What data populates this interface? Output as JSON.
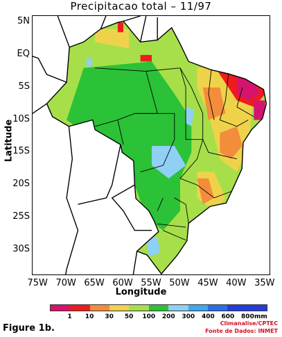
{
  "title": "Precipitacao total   – 11/97",
  "axes": {
    "ylabel": "Latitude",
    "xlabel": "Longitude",
    "y_ticks": [
      "5N",
      "EQ",
      "5S",
      "10S",
      "15S",
      "20S",
      "25S",
      "30S"
    ],
    "x_ticks": [
      "75W",
      "70W",
      "65W",
      "60W",
      "55W",
      "50W",
      "45W",
      "40W",
      "35W"
    ]
  },
  "legend": {
    "labels": [
      "1",
      "10",
      "30",
      "50",
      "100",
      "200",
      "300",
      "400",
      "600",
      "800"
    ],
    "unit": "mm",
    "colors": [
      "#d6136e",
      "#ee1c1c",
      "#f38d3c",
      "#eed34a",
      "#a7df4b",
      "#2bc237",
      "#8fd0f4",
      "#3fa8ef",
      "#2a6ee8",
      "#233ed8"
    ]
  },
  "figure_caption": "Figure 1b.",
  "credits": {
    "line1": "Climanalise/CPTEC",
    "line2": "Fonte de Dados: INMET"
  },
  "chart_data": {
    "type": "heatmap",
    "title": "Precipitacao total   – 11/97",
    "xlabel": "Longitude",
    "ylabel": "Latitude",
    "xlim": [
      -76,
      -34
    ],
    "ylim": [
      -34,
      6
    ],
    "x_tick_values": [
      -75,
      -70,
      -65,
      -60,
      -55,
      -50,
      -45,
      -40,
      -35
    ],
    "y_tick_values": [
      5,
      0,
      -5,
      -10,
      -15,
      -20,
      -25,
      -30
    ],
    "value_bins_mm": [
      1,
      10,
      30,
      50,
      100,
      200,
      300,
      400,
      600,
      800
    ],
    "regions": [
      {
        "level": 200,
        "polygon": [
          [
            -67,
            -2
          ],
          [
            -55,
            -1
          ],
          [
            -51,
            -6
          ],
          [
            -48,
            -10
          ],
          [
            -48,
            -15
          ],
          [
            -50,
            -19
          ],
          [
            -50,
            -24
          ],
          [
            -53,
            -27
          ],
          [
            -56,
            -25
          ],
          [
            -58,
            -20
          ],
          [
            -62,
            -15
          ],
          [
            -70,
            -10
          ]
        ]
      },
      {
        "level": 300,
        "polygon": [
          [
            -66.5,
            -0.5
          ],
          [
            -65.5,
            -0.5
          ],
          [
            -65.5,
            -1.8
          ],
          [
            -66.5,
            -1.8
          ]
        ]
      },
      {
        "level": 300,
        "polygon": [
          [
            -49,
            -8
          ],
          [
            -47.5,
            -8.5
          ],
          [
            -48,
            -11
          ],
          [
            -49,
            -10.5
          ]
        ]
      },
      {
        "level": 300,
        "polygon": [
          [
            -55,
            -14
          ],
          [
            -51,
            -14
          ],
          [
            -49,
            -17
          ],
          [
            -52,
            -19
          ],
          [
            -55,
            -17
          ]
        ]
      },
      {
        "level": 300,
        "polygon": [
          [
            -56,
            -28.5
          ],
          [
            -54,
            -28
          ],
          [
            -53.5,
            -30.5
          ],
          [
            -55.5,
            -31
          ]
        ]
      },
      {
        "level": 100,
        "polygon": [
          [
            -44,
            -13
          ],
          [
            -42,
            -13
          ],
          [
            -41,
            -18
          ],
          [
            -43,
            -20
          ],
          [
            -45,
            -17
          ]
        ]
      },
      {
        "level": 50,
        "polygon": [
          [
            -65,
            4
          ],
          [
            -59,
            4
          ],
          [
            -59,
            1
          ],
          [
            -62,
            1.5
          ],
          [
            -65,
            2
          ]
        ]
      },
      {
        "level": 50,
        "polygon": [
          [
            -47,
            -2
          ],
          [
            -40,
            -2
          ],
          [
            -37,
            -6
          ],
          [
            -38,
            -14
          ],
          [
            -40,
            -18
          ],
          [
            -43,
            -16
          ],
          [
            -45,
            -9
          ],
          [
            -47,
            -5
          ]
        ]
      },
      {
        "level": 50,
        "polygon": [
          [
            -47,
            -18
          ],
          [
            -44,
            -18
          ],
          [
            -42,
            -22
          ],
          [
            -44,
            -24
          ],
          [
            -47,
            -22
          ]
        ]
      },
      {
        "level": 30,
        "polygon": [
          [
            -46,
            -5
          ],
          [
            -43,
            -5
          ],
          [
            -42,
            -9
          ],
          [
            -45,
            -10
          ]
        ]
      },
      {
        "level": 30,
        "polygon": [
          [
            -43,
            -12
          ],
          [
            -40,
            -11
          ],
          [
            -39,
            -14
          ],
          [
            -41,
            -16
          ],
          [
            -43,
            -15
          ]
        ]
      },
      {
        "level": 30,
        "polygon": [
          [
            -47,
            -19
          ],
          [
            -45,
            -19
          ],
          [
            -44,
            -22
          ],
          [
            -46,
            -23
          ]
        ]
      },
      {
        "level": 10,
        "polygon": [
          [
            -45,
            0
          ],
          [
            -40,
            -1
          ],
          [
            -36,
            -4
          ],
          [
            -35,
            -6
          ],
          [
            -37,
            -8
          ],
          [
            -40,
            -7
          ],
          [
            -43,
            -3
          ]
        ]
      },
      {
        "level": 10,
        "polygon": [
          [
            -61,
            5
          ],
          [
            -60,
            5
          ],
          [
            -60,
            3.5
          ],
          [
            -61,
            3.5
          ]
        ]
      },
      {
        "level": 10,
        "polygon": [
          [
            -57,
            0
          ],
          [
            -55,
            0
          ],
          [
            -55,
            -1
          ],
          [
            -57,
            -1
          ]
        ]
      },
      {
        "level": 1,
        "polygon": [
          [
            -40,
            -3
          ],
          [
            -37,
            -4
          ],
          [
            -36,
            -6
          ],
          [
            -38,
            -7
          ],
          [
            -40,
            -6
          ]
        ]
      },
      {
        "level": 1,
        "polygon": [
          [
            -37,
            -7
          ],
          [
            -35,
            -7
          ],
          [
            -35,
            -10
          ],
          [
            -37,
            -10
          ]
        ]
      }
    ]
  }
}
